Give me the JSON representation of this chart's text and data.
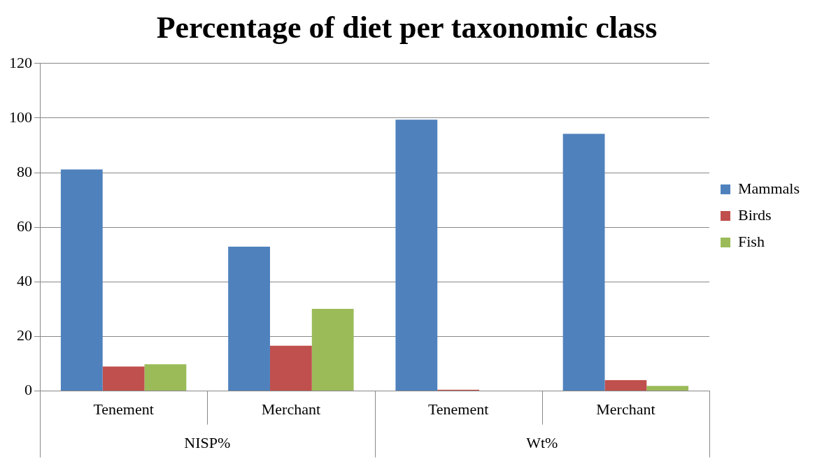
{
  "chart_data": {
    "type": "bar",
    "title": "Percentage of diet per taxonomic class",
    "categories": [
      "Tenement",
      "Merchant",
      "Tenement",
      "Merchant"
    ],
    "annotations": [
      "NISP%",
      "Wt%"
    ],
    "series": [
      {
        "name": "Mammals",
        "color": "#4f81bd",
        "values": [
          81.2,
          52.9,
          99.4,
          94.2
        ]
      },
      {
        "name": "Birds",
        "color": "#c0504d",
        "values": [
          9.0,
          16.6,
          0.5,
          4.0
        ]
      },
      {
        "name": "Fish",
        "color": "#9bbb59",
        "values": [
          9.8,
          30.1,
          0,
          1.9
        ]
      }
    ],
    "ylim": [
      0,
      120
    ],
    "yticks": [
      0,
      20,
      40,
      60,
      80,
      100,
      120
    ],
    "grid": "y",
    "legend": "right"
  }
}
